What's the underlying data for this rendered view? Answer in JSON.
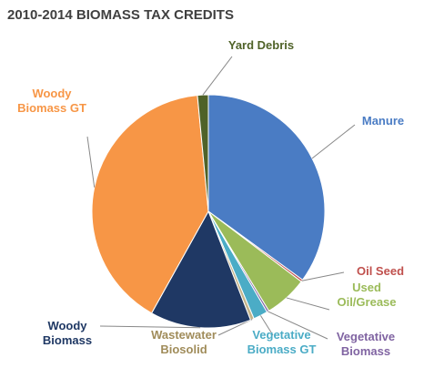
{
  "chart_data": {
    "type": "pie",
    "title": "2010-2014 BIOMASS TAX CREDITS",
    "categories": [
      "Manure",
      "Oil Seed",
      "Used Oil/Grease",
      "Vegetative Biomass",
      "Vegetative Biomass GT",
      "Wastewater Biosolid",
      "Woody Biomass",
      "Woody Biomass GT",
      "Yard Debris"
    ],
    "values": [
      35,
      0.3,
      6,
      0.3,
      2,
      0.5,
      14,
      40.4,
      1.5
    ],
    "colors": [
      "#4a7cc4",
      "#c0504d",
      "#9bbb59",
      "#8064a2",
      "#4bacc6",
      "#c4b48a",
      "#1f3864",
      "#f79646",
      "#4f6228"
    ]
  }
}
